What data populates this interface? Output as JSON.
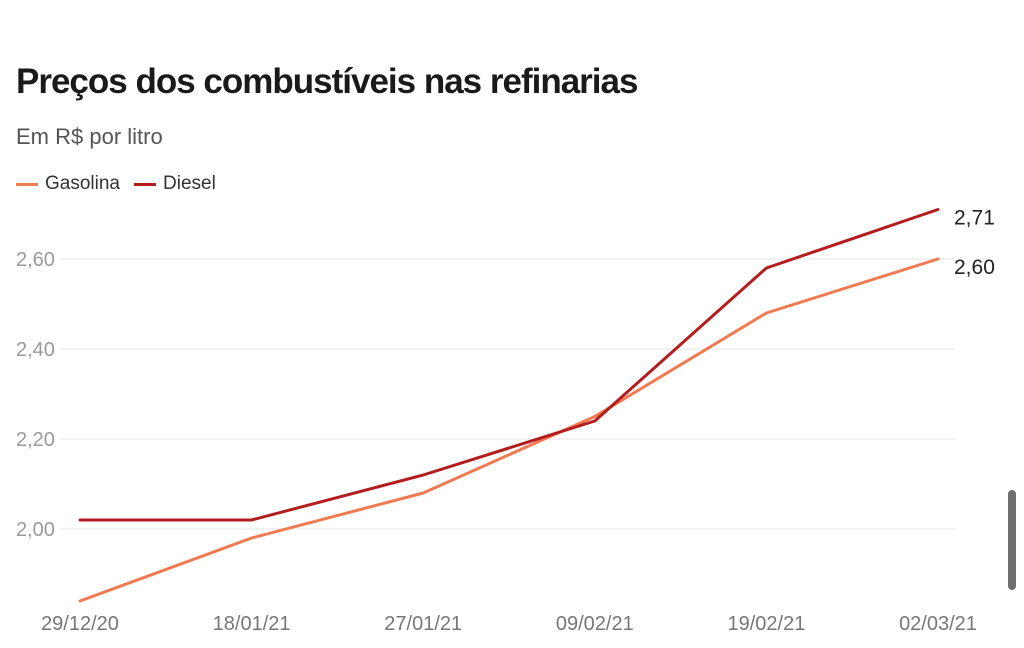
{
  "title": "Preços dos combustíveis nas refinarias",
  "subtitle": "Em R$ por litro",
  "chart_data": {
    "type": "line",
    "title": "Preços dos combustíveis nas refinarias",
    "subtitle": "Em R$ por litro",
    "xlabel": "",
    "ylabel": "",
    "categories": [
      "29/12/20",
      "18/01/21",
      "27/01/21",
      "09/02/21",
      "19/02/21",
      "02/03/21"
    ],
    "yticks": [
      "2,00",
      "2,20",
      "2,40",
      "2,60"
    ],
    "ylim": [
      1.84,
      2.76
    ],
    "grid": true,
    "legend_position": "top-left",
    "series": [
      {
        "name": "Gasolina",
        "color": "#f07b52",
        "values": [
          1.84,
          1.98,
          2.08,
          2.25,
          2.48,
          2.6
        ],
        "end_label": "2,60"
      },
      {
        "name": "Diesel",
        "color": "#b31d1d",
        "values": [
          2.02,
          2.02,
          2.12,
          2.24,
          2.58,
          2.71
        ],
        "end_label": "2,71"
      }
    ]
  }
}
